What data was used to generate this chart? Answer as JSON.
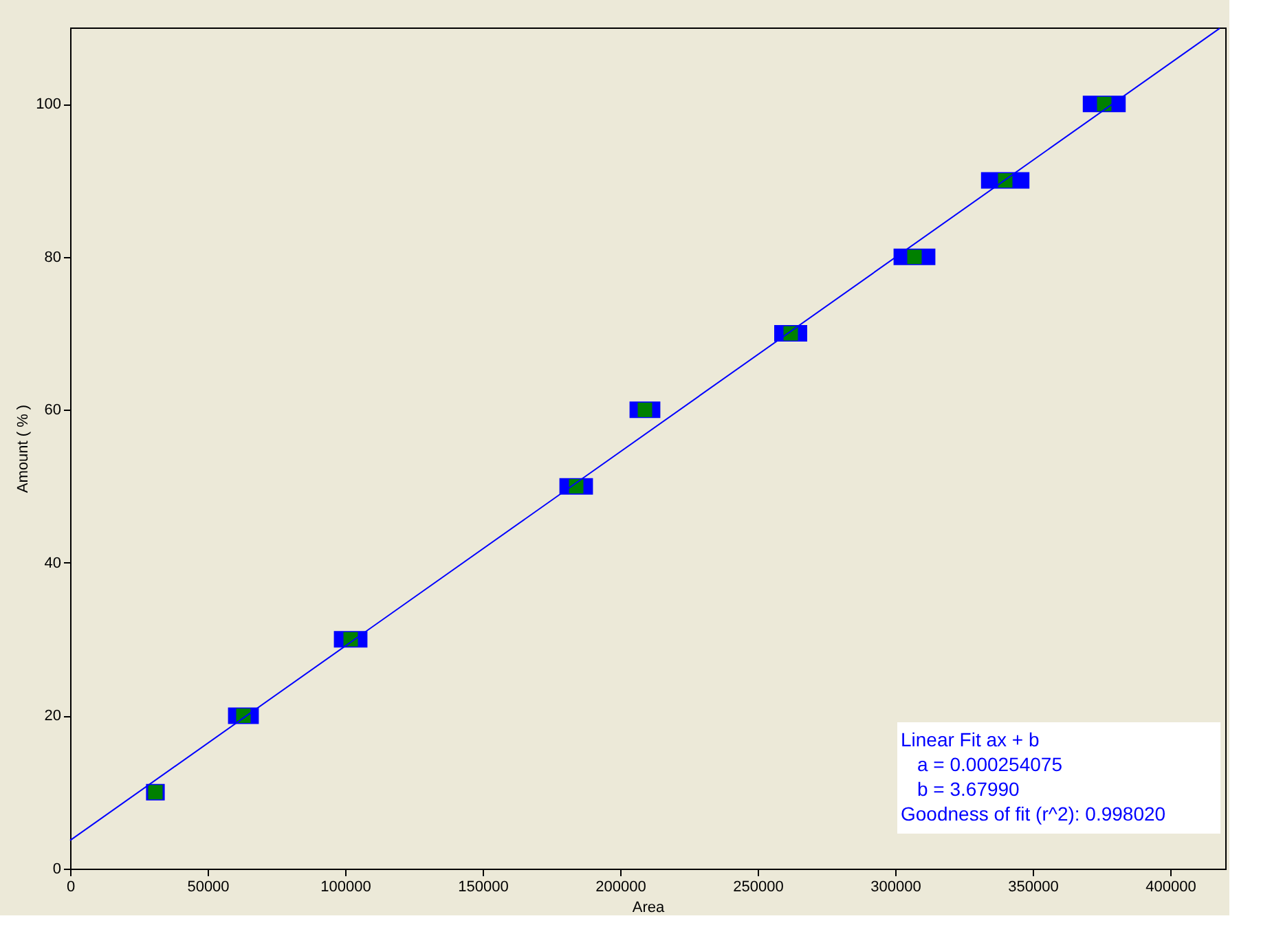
{
  "chart_data": {
    "type": "scatter",
    "xlabel": "Area",
    "ylabel": "Amount ( % )",
    "xlim": [
      0,
      420000
    ],
    "ylim": [
      0,
      110
    ],
    "xticks": [
      0,
      50000,
      100000,
      150000,
      200000,
      250000,
      300000,
      350000,
      400000
    ],
    "yticks": [
      0,
      20,
      40,
      60,
      80,
      100
    ],
    "grid": false,
    "series": [
      {
        "marker": "square",
        "color": "#008000",
        "x": [
          31000,
          63000,
          102000,
          184000,
          209000,
          262000,
          307000,
          340000,
          376000
        ],
        "values": [
          10,
          20,
          30,
          50,
          60,
          70,
          80,
          90,
          100
        ],
        "xerrors": [
          3400,
          5600,
          6100,
          6100,
          5600,
          6000,
          7600,
          8800,
          7800
        ]
      },
      {
        "type": "line",
        "color": "#0000ff",
        "x": [
          0,
          418000
        ],
        "values": [
          3.7,
          109.9
        ]
      }
    ],
    "annotations": [
      "Linear Fit    ax + b",
      "   a = 0.000254075",
      "   b = 3.67990",
      "Goodness of fit (r^2): 0.998020"
    ]
  }
}
